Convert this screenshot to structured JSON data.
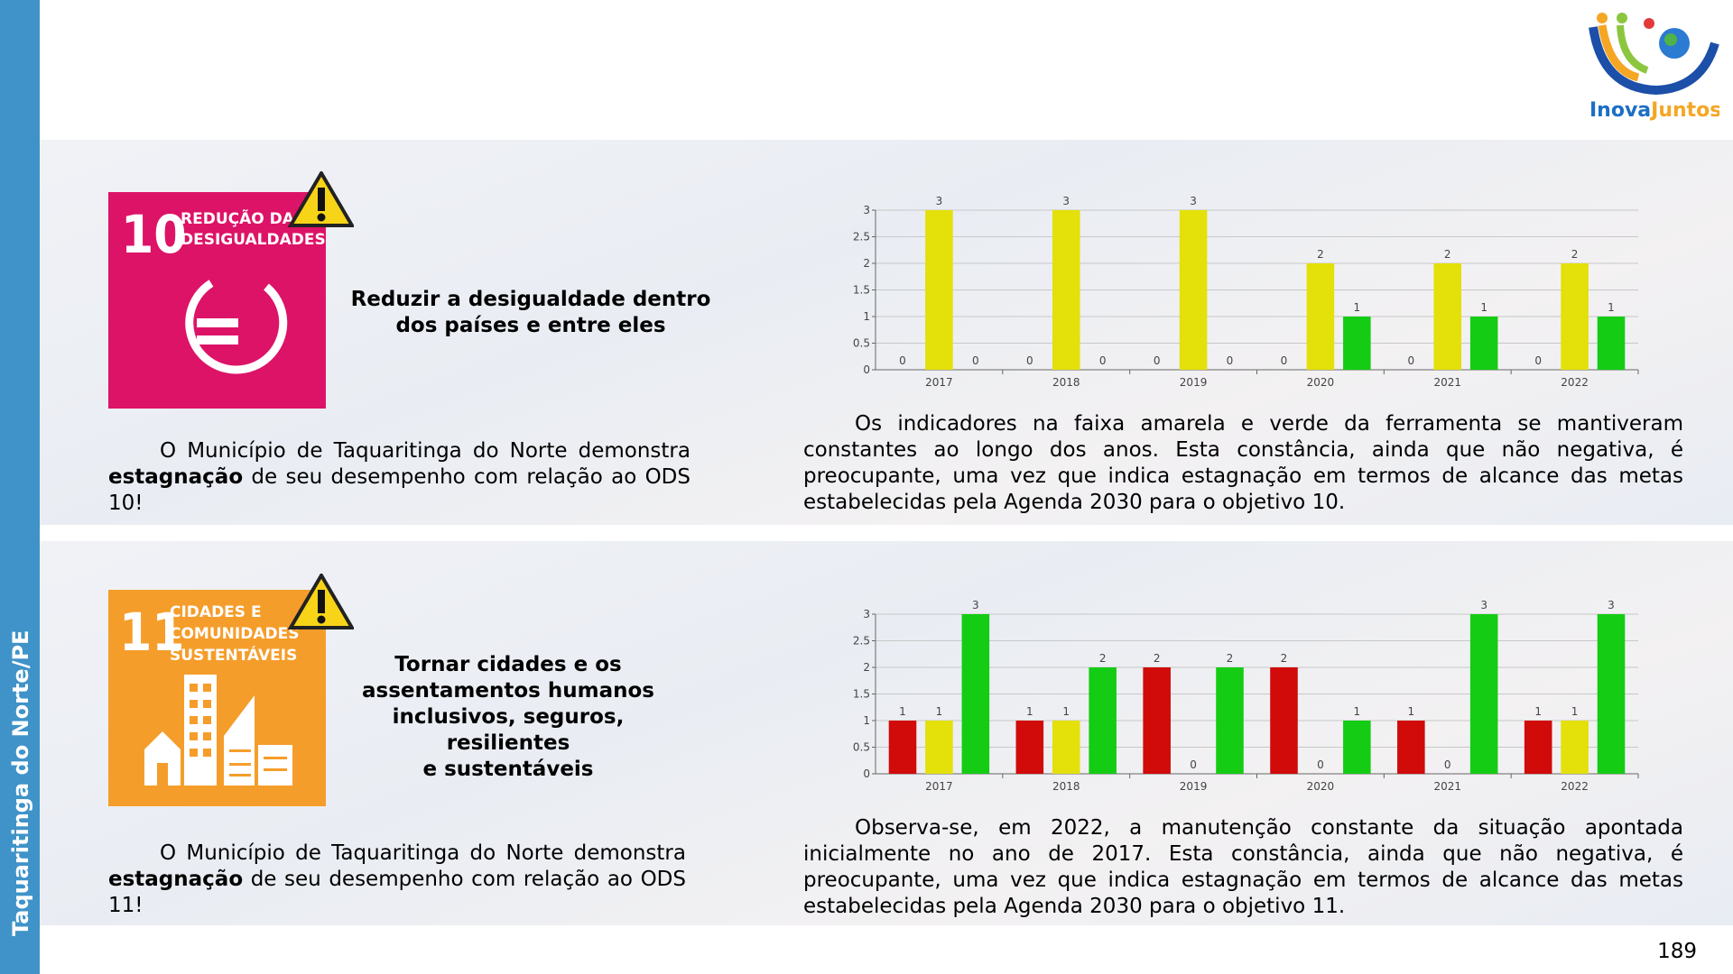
{
  "sidebar": "Taquaritinga do Norte/PE",
  "logo": [
    "Inova",
    "Juntos"
  ],
  "page_number": "189",
  "sections": [
    {
      "icon_number": "10",
      "icon_title": [
        "REDUÇÃO DAS",
        "DESIGUALDADES"
      ],
      "heading": [
        "Reduzir a desigualdade dentro",
        "dos países e entre eles"
      ],
      "paragraph": [
        "O Município de Taquaritinga do Norte demonstra",
        "estagnação",
        "de seu desempenho com relação ao ODS 10!"
      ],
      "analysis": "Os indicadores na faixa amarela e verde da ferramenta se mantiveram constantes ao longo dos anos. Esta constância, ainda que não negativa, é preocupante, uma vez que indica estagnação em termos de alcance das metas estabelecidas pela Agenda 2030 para o objetivo 10."
    },
    {
      "icon_number": "11",
      "icon_title": [
        "CIDADES E",
        "COMUNIDADES",
        "SUSTENTÁVEIS"
      ],
      "heading": [
        "Tornar cidades e os",
        "assentamentos humanos",
        "inclusivos, seguros, resilientes",
        "e sustentáveis"
      ],
      "paragraph": [
        "O Município de Taquaritinga do Norte demonstra",
        "estagnação",
        "de seu desempenho com relação ao ODS 11!"
      ],
      "analysis": "Observa-se, em 2022, a manutenção constante da situação apontada inicialmente no ano de 2017. Esta constância, ainda que não negativa, é preocupante, uma vez que indica estagnação em termos de alcance das metas estabelecidas pela Agenda 2030 para o objetivo 11."
    }
  ],
  "chart_data": [
    {
      "type": "bar",
      "categories": [
        "2017",
        "2018",
        "2019",
        "2020",
        "2021",
        "2022"
      ],
      "series": [
        {
          "color": "#d10a0a",
          "values": [
            0,
            0,
            0,
            0,
            0,
            0
          ]
        },
        {
          "color": "#e3e00a",
          "values": [
            3,
            3,
            3,
            2,
            2,
            2
          ]
        },
        {
          "color": "#14cc14",
          "values": [
            0,
            0,
            0,
            1,
            1,
            1
          ]
        }
      ],
      "ylim": [
        0,
        3
      ],
      "yticks": [
        0,
        0.5,
        1,
        1.5,
        2,
        2.5,
        3
      ],
      "grid": true
    },
    {
      "type": "bar",
      "categories": [
        "2017",
        "2018",
        "2019",
        "2020",
        "2021",
        "2022"
      ],
      "series": [
        {
          "color": "#d10a0a",
          "values": [
            1,
            1,
            2,
            2,
            1,
            1
          ]
        },
        {
          "color": "#e3e00a",
          "values": [
            1,
            1,
            0,
            0,
            0,
            1
          ]
        },
        {
          "color": "#14cc14",
          "values": [
            3,
            2,
            2,
            1,
            3,
            3
          ]
        }
      ],
      "ylim": [
        0,
        3
      ],
      "yticks": [
        0,
        0.5,
        1,
        1.5,
        2,
        2.5,
        3
      ],
      "grid": true
    }
  ]
}
